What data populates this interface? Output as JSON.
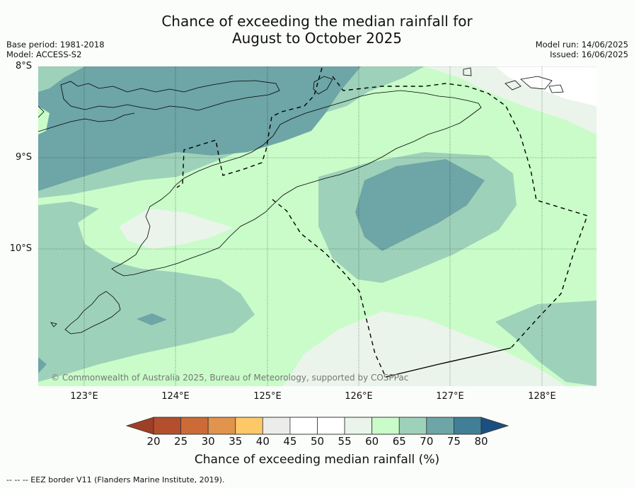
{
  "title_line1": "Chance of exceeding the median rainfall for",
  "title_line2": "August to October 2025",
  "meta_left": [
    "Base period: 1981-2018",
    "Model: ACCESS-S2"
  ],
  "meta_right": [
    "Model run: 14/06/2025",
    "Issued: 16/06/2025"
  ],
  "lat_labels": [
    "8°S",
    "9°S",
    "10°S"
  ],
  "lon_labels": [
    "123°E",
    "124°E",
    "125°E",
    "126°E",
    "127°E",
    "128°E"
  ],
  "copyright": "© Commonwealth of Australia 2025, Bureau of Meteorology, supported by COSPPac",
  "colorbar": {
    "title": "Chance of exceeding median rainfall (%)",
    "ticks": [
      "20",
      "25",
      "30",
      "35",
      "40",
      "45",
      "50",
      "55",
      "60",
      "65",
      "70",
      "75",
      "80"
    ],
    "colors": [
      "#9e3f26",
      "#b34f2d",
      "#cc6b37",
      "#e0944c",
      "#fdc868",
      "#ececea",
      "#ffffff",
      "#ffffff",
      "#eaf4ea",
      "#c9fcc9",
      "#9ed1b9",
      "#6ea5a6",
      "#417f97",
      "#1c4e80"
    ]
  },
  "footer": "--  --  -- EEZ border V11 (Flanders Marine Institute, 2019)."
}
